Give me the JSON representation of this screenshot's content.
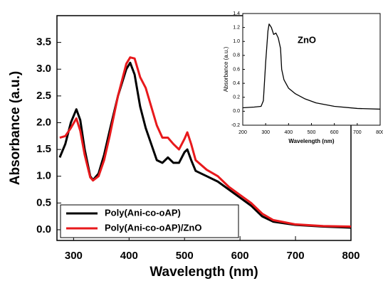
{
  "chart_data": [
    {
      "type": "line",
      "x_label": "Wavelength (nm)",
      "y_label": "Absorbance (a.u.)",
      "x": [
        275,
        285,
        295,
        305,
        312,
        320,
        330,
        335,
        345,
        355,
        365,
        380,
        395,
        402,
        410,
        420,
        430,
        440,
        450,
        460,
        470,
        480,
        490,
        500,
        505,
        512,
        520,
        540,
        560,
        580,
        600,
        620,
        640,
        660,
        700,
        750,
        800
      ],
      "series": [
        {
          "name": "Poly(Ani-co-oAP)",
          "color": "#000000",
          "values": [
            1.35,
            1.6,
            2.0,
            2.25,
            2.05,
            1.5,
            1.0,
            0.93,
            1.05,
            1.4,
            1.85,
            2.5,
            3.0,
            3.12,
            2.9,
            2.3,
            1.9,
            1.6,
            1.3,
            1.25,
            1.35,
            1.25,
            1.25,
            1.45,
            1.5,
            1.3,
            1.1,
            1.0,
            0.9,
            0.75,
            0.6,
            0.45,
            0.25,
            0.15,
            0.09,
            0.06,
            0.04
          ]
        },
        {
          "name": "Poly(Ani-co-oAP)/ZnO",
          "color": "#e8191c",
          "values": [
            1.72,
            1.75,
            1.9,
            2.08,
            1.85,
            1.4,
            0.98,
            0.92,
            1.0,
            1.3,
            1.75,
            2.5,
            3.1,
            3.22,
            3.2,
            2.85,
            2.65,
            2.3,
            1.95,
            1.72,
            1.72,
            1.6,
            1.5,
            1.7,
            1.82,
            1.6,
            1.3,
            1.12,
            1.0,
            0.8,
            0.65,
            0.5,
            0.3,
            0.18,
            0.1,
            0.07,
            0.06
          ]
        }
      ],
      "xlim": [
        270,
        800
      ],
      "xticks": [
        300,
        400,
        500,
        600,
        700,
        800
      ],
      "ylim": [
        -0.2,
        4.0
      ],
      "yticks": [
        {
          "value": 0,
          "label": "0.0"
        },
        0.5,
        {
          "value": 1,
          "label": "1.0"
        },
        1.5,
        {
          "value": 2,
          "label": "2.0"
        },
        2.5,
        {
          "value": 3,
          "label": "3.0"
        },
        3.5
      ],
      "grid": false,
      "legend": "lower left"
    },
    {
      "type": "line",
      "x_label": "Wavelength (nm)",
      "y_label": "Absorbance (a.u.)",
      "annotation": "ZnO",
      "x": [
        200,
        250,
        280,
        290,
        300,
        310,
        315,
        325,
        335,
        345,
        355,
        365,
        370,
        380,
        400,
        430,
        470,
        520,
        600,
        700,
        800
      ],
      "series": [
        {
          "color": "#000000",
          "values": [
            0.05,
            0.06,
            0.07,
            0.15,
            0.7,
            1.15,
            1.25,
            1.2,
            1.1,
            1.12,
            1.05,
            0.9,
            0.6,
            0.45,
            0.33,
            0.25,
            0.18,
            0.12,
            0.07,
            0.04,
            0.03
          ]
        }
      ],
      "xlim": [
        200,
        800
      ],
      "xticks": [
        200,
        300,
        400,
        500,
        600,
        700,
        800
      ],
      "ylim": [
        -0.2,
        1.4
      ],
      "yticks": [
        -0.2,
        {
          "value": 0,
          "label": "0.0"
        },
        0.2,
        0.4,
        0.6,
        0.8,
        {
          "value": 1,
          "label": "1.0"
        },
        1.2,
        1.4
      ],
      "grid": false
    }
  ]
}
